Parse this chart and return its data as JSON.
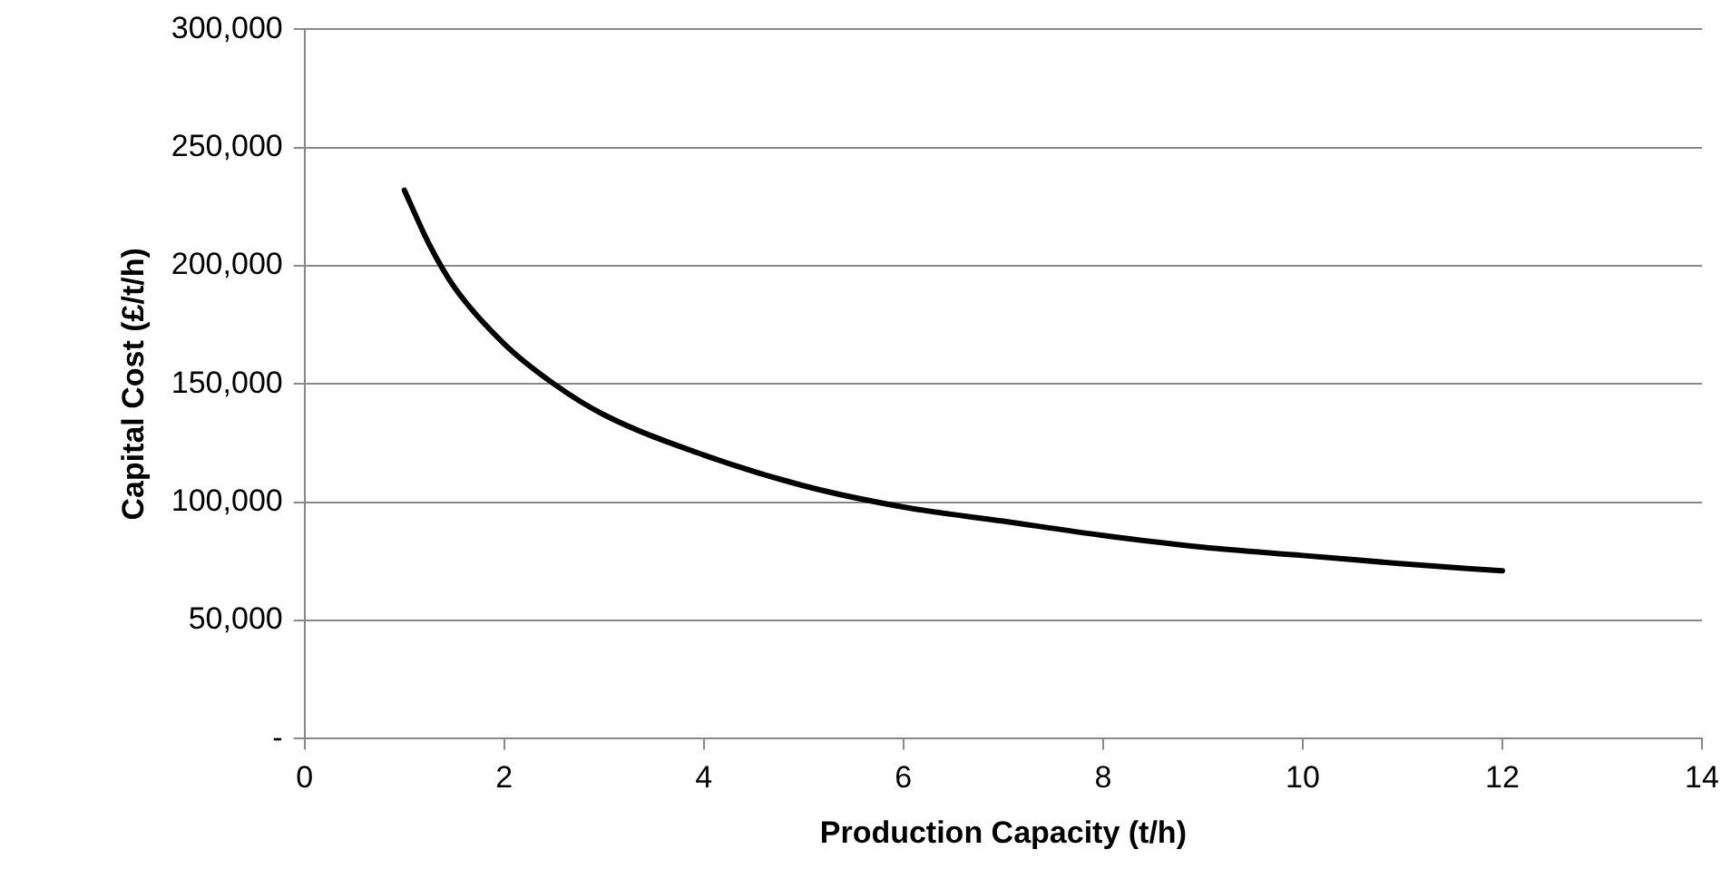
{
  "chart_data": {
    "type": "line",
    "xlabel": "Production Capacity (t/h)",
    "ylabel": "Capital Cost (£/t/h)",
    "x": [
      1,
      1.25,
      1.5,
      2,
      2.5,
      3,
      4,
      5,
      6,
      7,
      8,
      9,
      10,
      11,
      12
    ],
    "series": [
      {
        "color": "#000000",
        "values": [
          232000,
          209000,
          191000,
          167000,
          150000,
          137000,
          120000,
          107000,
          98000,
          92000,
          86000,
          81000,
          77500,
          74000,
          71000
        ]
      }
    ],
    "xlim": [
      0,
      14
    ],
    "xticks": [
      0,
      2,
      4,
      6,
      8,
      10,
      12,
      14
    ],
    "ylim": [
      0,
      300000
    ],
    "yticks": [
      {
        "value": 0,
        "label": "-"
      },
      {
        "value": 50000,
        "label": "50,000"
      },
      {
        "value": 100000,
        "label": "100,000"
      },
      {
        "value": 150000,
        "label": "150,000"
      },
      {
        "value": 200000,
        "label": "200,000"
      },
      {
        "value": 250000,
        "label": "250,000"
      },
      {
        "value": 300000,
        "label": "300,000"
      }
    ],
    "grid": "y",
    "legend": false,
    "marker": "none",
    "line_style": "solid"
  }
}
